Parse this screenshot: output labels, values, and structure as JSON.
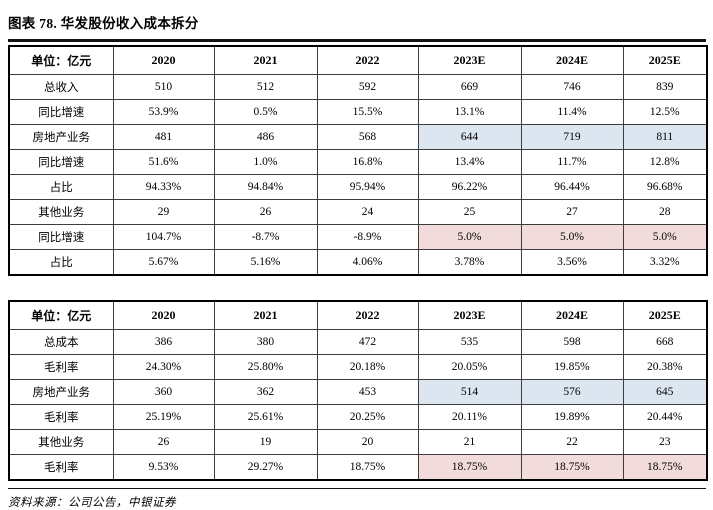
{
  "title": "图表 78. 华发股份收入成本拆分",
  "footer": {
    "source": "资料来源：公司公告，中银证券"
  },
  "colors": {
    "forecast_highlight_blue": "#dce6f1",
    "forecast_highlight_pink": "#f2dcdb",
    "rule_black": "#141414"
  },
  "tables": [
    {
      "name": "revenue-breakdown",
      "header": [
        "单位：亿元",
        "2020",
        "2021",
        "2022",
        "2023E",
        "2024E",
        "2025E"
      ],
      "rows": [
        {
          "label": "总收入",
          "label_bold": true,
          "values_bold": true,
          "highlight": null,
          "values": [
            "510",
            "512",
            "592",
            "669",
            "746",
            "839"
          ]
        },
        {
          "label": "同比增速",
          "label_bold": true,
          "values_bold": false,
          "highlight": null,
          "values": [
            "53.9%",
            "0.5%",
            "15.5%",
            "13.1%",
            "11.4%",
            "12.5%"
          ]
        },
        {
          "label": "房地产业务",
          "label_bold": false,
          "values_bold": false,
          "highlight": "blue",
          "values": [
            "481",
            "486",
            "568",
            "644",
            "719",
            "811"
          ]
        },
        {
          "label": "同比增速",
          "label_bold": false,
          "values_bold": false,
          "highlight": null,
          "values": [
            "51.6%",
            "1.0%",
            "16.8%",
            "13.4%",
            "11.7%",
            "12.8%"
          ]
        },
        {
          "label": "占比",
          "label_bold": false,
          "values_bold": false,
          "highlight": null,
          "values": [
            "94.33%",
            "94.84%",
            "95.94%",
            "96.22%",
            "96.44%",
            "96.68%"
          ]
        },
        {
          "label": "其他业务",
          "label_bold": false,
          "values_bold": false,
          "highlight": null,
          "values": [
            "29",
            "26",
            "24",
            "25",
            "27",
            "28"
          ]
        },
        {
          "label": "同比增速",
          "label_bold": false,
          "values_bold": false,
          "highlight": "pink",
          "values": [
            "104.7%",
            "-8.7%",
            "-8.9%",
            "5.0%",
            "5.0%",
            "5.0%"
          ]
        },
        {
          "label": "占比",
          "label_bold": false,
          "values_bold": false,
          "highlight": null,
          "values": [
            "5.67%",
            "5.16%",
            "4.06%",
            "3.78%",
            "3.56%",
            "3.32%"
          ]
        }
      ]
    },
    {
      "name": "cost-breakdown",
      "header": [
        "单位：亿元",
        "2020",
        "2021",
        "2022",
        "2023E",
        "2024E",
        "2025E"
      ],
      "rows": [
        {
          "label": "总成本",
          "label_bold": true,
          "values_bold": true,
          "highlight": null,
          "values": [
            "386",
            "380",
            "472",
            "535",
            "598",
            "668"
          ]
        },
        {
          "label": "毛利率",
          "label_bold": true,
          "values_bold": false,
          "highlight": null,
          "values": [
            "24.30%",
            "25.80%",
            "20.18%",
            "20.05%",
            "19.85%",
            "20.38%"
          ]
        },
        {
          "label": "房地产业务",
          "label_bold": false,
          "values_bold": false,
          "highlight": "blue",
          "values": [
            "360",
            "362",
            "453",
            "514",
            "576",
            "645"
          ]
        },
        {
          "label": "毛利率",
          "label_bold": false,
          "values_bold": false,
          "highlight": null,
          "values": [
            "25.19%",
            "25.61%",
            "20.25%",
            "20.11%",
            "19.89%",
            "20.44%"
          ]
        },
        {
          "label": "其他业务",
          "label_bold": false,
          "values_bold": false,
          "highlight": null,
          "values": [
            "26",
            "19",
            "20",
            "21",
            "22",
            "23"
          ]
        },
        {
          "label": "毛利率",
          "label_bold": false,
          "values_bold": false,
          "highlight": "pink",
          "values": [
            "9.53%",
            "29.27%",
            "18.75%",
            "18.75%",
            "18.75%",
            "18.75%"
          ]
        }
      ]
    }
  ],
  "forecast_columns_start_index": 3
}
